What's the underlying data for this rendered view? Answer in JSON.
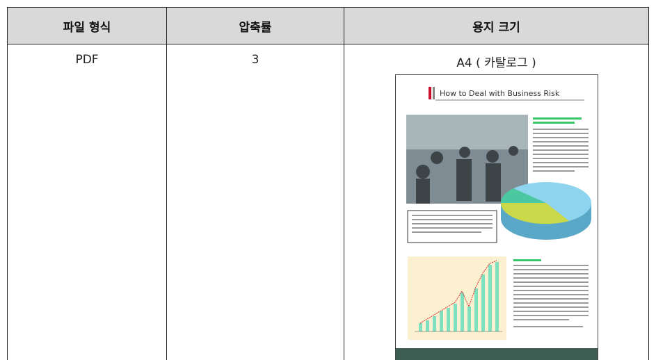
{
  "table": {
    "header": [
      "파일 형식",
      "압축률",
      "용지 크기"
    ],
    "rows": [
      [
        "PDF",
        "3",
        "A4 ( 카탈로그 )"
      ]
    ]
  },
  "thumbnail": {
    "title": "How to Deal with Business Risk"
  }
}
